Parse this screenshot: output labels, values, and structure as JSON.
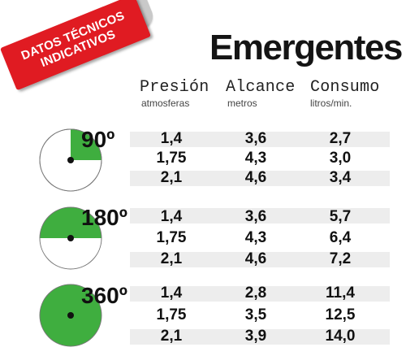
{
  "badge": {
    "line1": "DATOS TÉCNICOS",
    "line2": "INDICATIVOS",
    "color": "#e01b22"
  },
  "title": "Emergentes",
  "columns": [
    {
      "label": "Presión",
      "unit": "atmosferas"
    },
    {
      "label": "Alcance",
      "unit": "metros"
    },
    {
      "label": "Consumo",
      "unit": "litros/min."
    }
  ],
  "accent_color": "#3fae3f",
  "groups": [
    {
      "angle": "90º",
      "icon": "sector-90-icon",
      "sector_degrees": 90,
      "rows": [
        [
          "1,4",
          "3,6",
          "2,7"
        ],
        [
          "1,75",
          "4,3",
          "3,0"
        ],
        [
          "2,1",
          "4,6",
          "3,4"
        ]
      ]
    },
    {
      "angle": "180º",
      "icon": "sector-180-icon",
      "sector_degrees": 180,
      "rows": [
        [
          "1,4",
          "3,6",
          "5,7"
        ],
        [
          "1,75",
          "4,3",
          "6,4"
        ],
        [
          "2,1",
          "4,6",
          "7,2"
        ]
      ]
    },
    {
      "angle": "360º",
      "icon": "sector-360-icon",
      "sector_degrees": 360,
      "rows": [
        [
          "1,4",
          "2,8",
          "11,4"
        ],
        [
          "1,75",
          "3,5",
          "12,5"
        ],
        [
          "2,1",
          "3,9",
          "14,0"
        ]
      ]
    }
  ]
}
